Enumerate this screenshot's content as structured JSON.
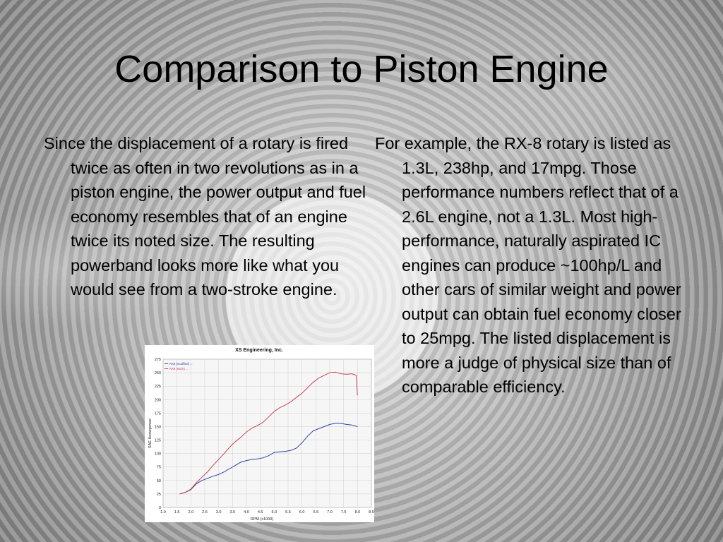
{
  "slide": {
    "title": "Comparison to Piston Engine",
    "left_bullet": "Since the displacement of a rotary is fired twice as often in two revolutions as in a piston engine, the power output and fuel economy resembles that of an engine twice its noted size.  The resulting powerband looks more like what you would see from a two-stroke engine.",
    "right_bullet": "For example, the RX-8 rotary is listed as 1.3L, 238hp, and 17mpg.  Those performance numbers reflect that of a 2.6L engine, not a 1.3L.  Most high-performance, naturally aspirated IC engines can produce ~100hp/L and other cars of similar weight and power output can obtain fuel economy closer to 25mpg.  The listed displacement is more a judge of physical size than of comparable efficiency."
  },
  "chart_data": {
    "type": "line",
    "title": "XS Engineering, Inc.",
    "xlabel": "RPM (x1000)",
    "ylabel": "SAE Horsepower",
    "xlim": [
      1.0,
      8.5
    ],
    "ylim": [
      0,
      275
    ],
    "xticks": [
      "1.0",
      "1.5",
      "2.0",
      "2.5",
      "3.0",
      "3.5",
      "4.0",
      "4.5",
      "5.0",
      "5.5",
      "6.0",
      "6.5",
      "7.0",
      "7.5",
      "8.0",
      "8.5"
    ],
    "yticks": [
      "0",
      "25",
      "50",
      "75",
      "100",
      "125",
      "150",
      "175",
      "200",
      "225",
      "250",
      "275"
    ],
    "grid": true,
    "legend_position": "top-left",
    "series": [
      {
        "name": "RX8 (modified) ...",
        "color": "#3344aa",
        "x": [
          1.6,
          1.8,
          2.0,
          2.2,
          2.4,
          2.6,
          2.8,
          3.0,
          3.2,
          3.4,
          3.6,
          3.8,
          4.0,
          4.2,
          4.4,
          4.6,
          4.8,
          5.0,
          5.2,
          5.4,
          5.6,
          5.8,
          6.0,
          6.2,
          6.4,
          6.6,
          6.8,
          7.0,
          7.2,
          7.4,
          7.6,
          7.8,
          8.0
        ],
        "values": [
          25,
          28,
          33,
          44,
          50,
          54,
          58,
          61,
          66,
          72,
          78,
          84,
          87,
          89,
          90,
          92,
          96,
          102,
          103,
          104,
          106,
          110,
          120,
          132,
          142,
          146,
          150,
          154,
          156,
          156,
          154,
          153,
          150
        ]
      },
      {
        "name": "RX8 (stock) ...",
        "color": "#cc4455",
        "x": [
          1.6,
          1.8,
          2.0,
          2.2,
          2.4,
          2.6,
          2.8,
          3.0,
          3.2,
          3.4,
          3.6,
          3.8,
          4.0,
          4.2,
          4.4,
          4.6,
          4.8,
          5.0,
          5.2,
          5.4,
          5.6,
          5.8,
          6.0,
          6.2,
          6.4,
          6.6,
          6.8,
          7.0,
          7.2,
          7.4,
          7.6,
          7.8,
          7.95,
          8.0
        ],
        "values": [
          25,
          28,
          34,
          46,
          56,
          66,
          78,
          89,
          100,
          112,
          122,
          130,
          140,
          147,
          152,
          158,
          168,
          178,
          185,
          190,
          196,
          204,
          212,
          222,
          232,
          240,
          245,
          250,
          251,
          248,
          247,
          248,
          245,
          208
        ]
      }
    ]
  }
}
